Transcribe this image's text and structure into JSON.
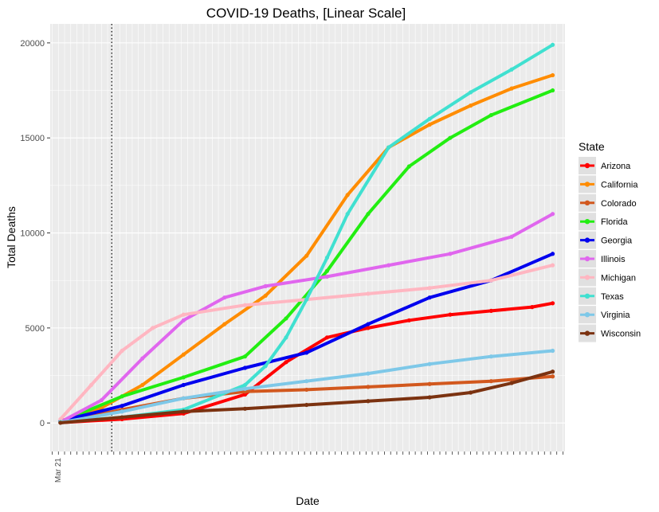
{
  "chart_data": {
    "type": "line",
    "title": "COVID-19 Deaths, [Linear Scale]",
    "xlabel": "Date",
    "ylabel": "Total Deaths",
    "ylim": [
      -1500,
      21000
    ],
    "y_ticks": [
      0,
      5000,
      10000,
      15000,
      20000
    ],
    "x_range_days": [
      -5,
      246
    ],
    "x_labels_note": "Date tick labels are rotated and overlapping; only first legible labels recorded",
    "x_tick_first": "Mar 21",
    "vline_x": 25,
    "grid": true,
    "legend": {
      "title": "State",
      "placement": "right"
    },
    "series": [
      {
        "name": "Arizona",
        "color": "#ff0000",
        "x": [
          0,
          30,
          60,
          90,
          110,
          130,
          150,
          170,
          190,
          210,
          230,
          240
        ],
        "values": [
          20,
          200,
          500,
          1500,
          3200,
          4500,
          5000,
          5400,
          5700,
          5900,
          6100,
          6300
        ]
      },
      {
        "name": "California",
        "color": "#ff8c00",
        "x": [
          0,
          20,
          40,
          60,
          80,
          100,
          120,
          140,
          160,
          180,
          200,
          220,
          240
        ],
        "values": [
          100,
          800,
          2000,
          3600,
          5200,
          6700,
          8800,
          12000,
          14500,
          15700,
          16700,
          17600,
          18300
        ]
      },
      {
        "name": "Colorado",
        "color": "#d2581e",
        "x": [
          0,
          30,
          60,
          90,
          120,
          150,
          180,
          210,
          240
        ],
        "values": [
          20,
          700,
          1300,
          1650,
          1750,
          1900,
          2050,
          2200,
          2450
        ]
      },
      {
        "name": "Florida",
        "color": "#22ee11",
        "x": [
          0,
          30,
          60,
          90,
          110,
          130,
          150,
          170,
          190,
          210,
          240
        ],
        "values": [
          60,
          1400,
          2400,
          3500,
          5500,
          8000,
          11000,
          13500,
          15000,
          16200,
          17500
        ]
      },
      {
        "name": "Georgia",
        "color": "#0000ee",
        "x": [
          0,
          30,
          60,
          90,
          120,
          150,
          180,
          210,
          240
        ],
        "values": [
          100,
          900,
          2000,
          2900,
          3700,
          5200,
          6600,
          7500,
          8900
        ]
      },
      {
        "name": "Illinois",
        "color": "#e066ee",
        "x": [
          0,
          20,
          40,
          60,
          80,
          100,
          130,
          160,
          190,
          220,
          240
        ],
        "values": [
          50,
          1200,
          3400,
          5400,
          6600,
          7200,
          7700,
          8300,
          8900,
          9800,
          11000
        ]
      },
      {
        "name": "Michigan",
        "color": "#ffb6c1",
        "x": [
          0,
          15,
          30,
          45,
          60,
          90,
          120,
          150,
          180,
          210,
          240
        ],
        "values": [
          200,
          2000,
          3800,
          5000,
          5700,
          6200,
          6500,
          6800,
          7100,
          7500,
          8300
        ]
      },
      {
        "name": "Texas",
        "color": "#40e0d0",
        "x": [
          0,
          30,
          60,
          90,
          100,
          110,
          120,
          130,
          140,
          160,
          180,
          200,
          220,
          240
        ],
        "values": [
          50,
          300,
          700,
          2000,
          3000,
          4500,
          6500,
          8700,
          11000,
          14500,
          16000,
          17400,
          18600,
          19900
        ]
      },
      {
        "name": "Virginia",
        "color": "#7ec8e8",
        "x": [
          0,
          30,
          60,
          90,
          120,
          150,
          180,
          210,
          240
        ],
        "values": [
          20,
          600,
          1300,
          1800,
          2200,
          2600,
          3100,
          3500,
          3800
        ]
      },
      {
        "name": "Wisconsin",
        "color": "#7b3210",
        "x": [
          0,
          30,
          60,
          90,
          120,
          150,
          180,
          200,
          220,
          240
        ],
        "values": [
          10,
          300,
          600,
          750,
          950,
          1150,
          1350,
          1600,
          2100,
          2700
        ]
      }
    ]
  }
}
